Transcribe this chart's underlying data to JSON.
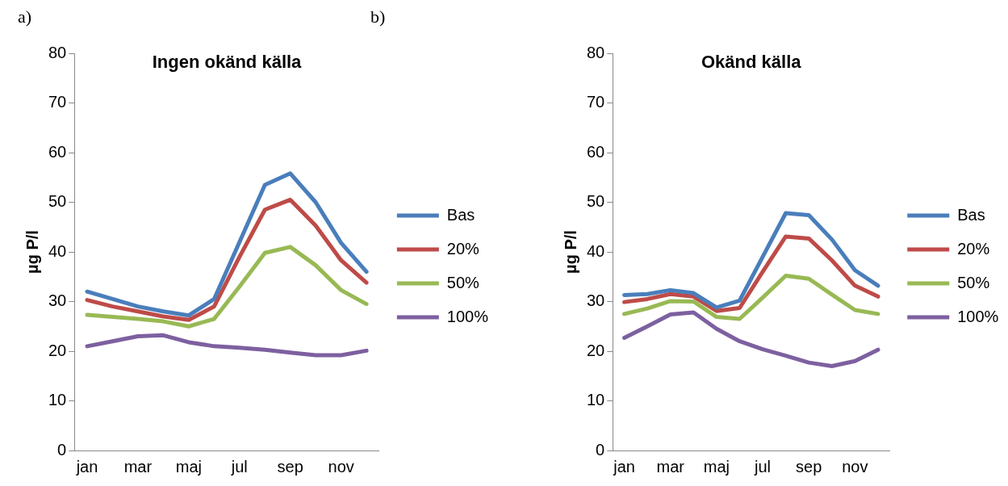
{
  "chart_data": [
    {
      "type": "line",
      "title": "Ingen okänd källa",
      "ylabel": "µg P/l",
      "annotations": [
        "a)"
      ],
      "categories": [
        "jan",
        null,
        "mar",
        null,
        "maj",
        null,
        "jul",
        null,
        "sep",
        null,
        "nov",
        null
      ],
      "ylim": [
        0,
        80
      ],
      "yticks": [
        0,
        10,
        20,
        30,
        40,
        50,
        60,
        70,
        80
      ],
      "grid": false,
      "legend": "right",
      "marker": "none",
      "series": [
        {
          "name": "Bas",
          "color": "#4a7ebb",
          "values": [
            32,
            30.5,
            29,
            28,
            27.2,
            30.5,
            42,
            53.5,
            55.8,
            50,
            41.8,
            36
          ]
        },
        {
          "name": "20%",
          "color": "#be4b48",
          "values": [
            30.3,
            29,
            28,
            27,
            26.3,
            29,
            39,
            48.5,
            50.5,
            45.3,
            38.3,
            33.8
          ]
        },
        {
          "name": "50%",
          "color": "#98b954",
          "values": [
            27.3,
            26.9,
            26.5,
            26,
            25,
            26.5,
            33,
            39.8,
            41,
            37.3,
            32.3,
            29.5
          ]
        },
        {
          "name": "100%",
          "color": "#7d60a0",
          "values": [
            21,
            22,
            23,
            23.2,
            21.8,
            21,
            20.7,
            20.3,
            19.7,
            19.2,
            19.2,
            20.1
          ]
        }
      ]
    },
    {
      "type": "line",
      "title": "Okänd källa",
      "ylabel": "µg P/l",
      "annotations": [
        "b)"
      ],
      "categories": [
        "jan",
        null,
        "mar",
        null,
        "maj",
        null,
        "jul",
        null,
        "sep",
        null,
        "nov",
        null
      ],
      "ylim": [
        0,
        80
      ],
      "yticks": [
        0,
        10,
        20,
        30,
        40,
        50,
        60,
        70,
        80
      ],
      "grid": false,
      "legend": "right",
      "marker": "none",
      "series": [
        {
          "name": "Bas",
          "color": "#4a7ebb",
          "values": [
            31.3,
            31.5,
            32.3,
            31.7,
            28.8,
            30.2,
            39,
            47.8,
            47.4,
            42.5,
            36.3,
            33.2
          ]
        },
        {
          "name": "20%",
          "color": "#be4b48",
          "values": [
            29.9,
            30.5,
            31.5,
            31,
            28.1,
            28.7,
            36,
            43.1,
            42.7,
            38.3,
            33.2,
            31
          ]
        },
        {
          "name": "50%",
          "color": "#98b954",
          "values": [
            27.5,
            28.6,
            30.1,
            30,
            26.9,
            26.5,
            30.8,
            35.2,
            34.6,
            31.4,
            28.3,
            27.5
          ]
        },
        {
          "name": "100%",
          "color": "#7d60a0",
          "values": [
            22.7,
            25,
            27.4,
            27.8,
            24.5,
            22,
            20.4,
            19.1,
            17.7,
            17,
            18,
            20.3
          ]
        }
      ]
    }
  ]
}
